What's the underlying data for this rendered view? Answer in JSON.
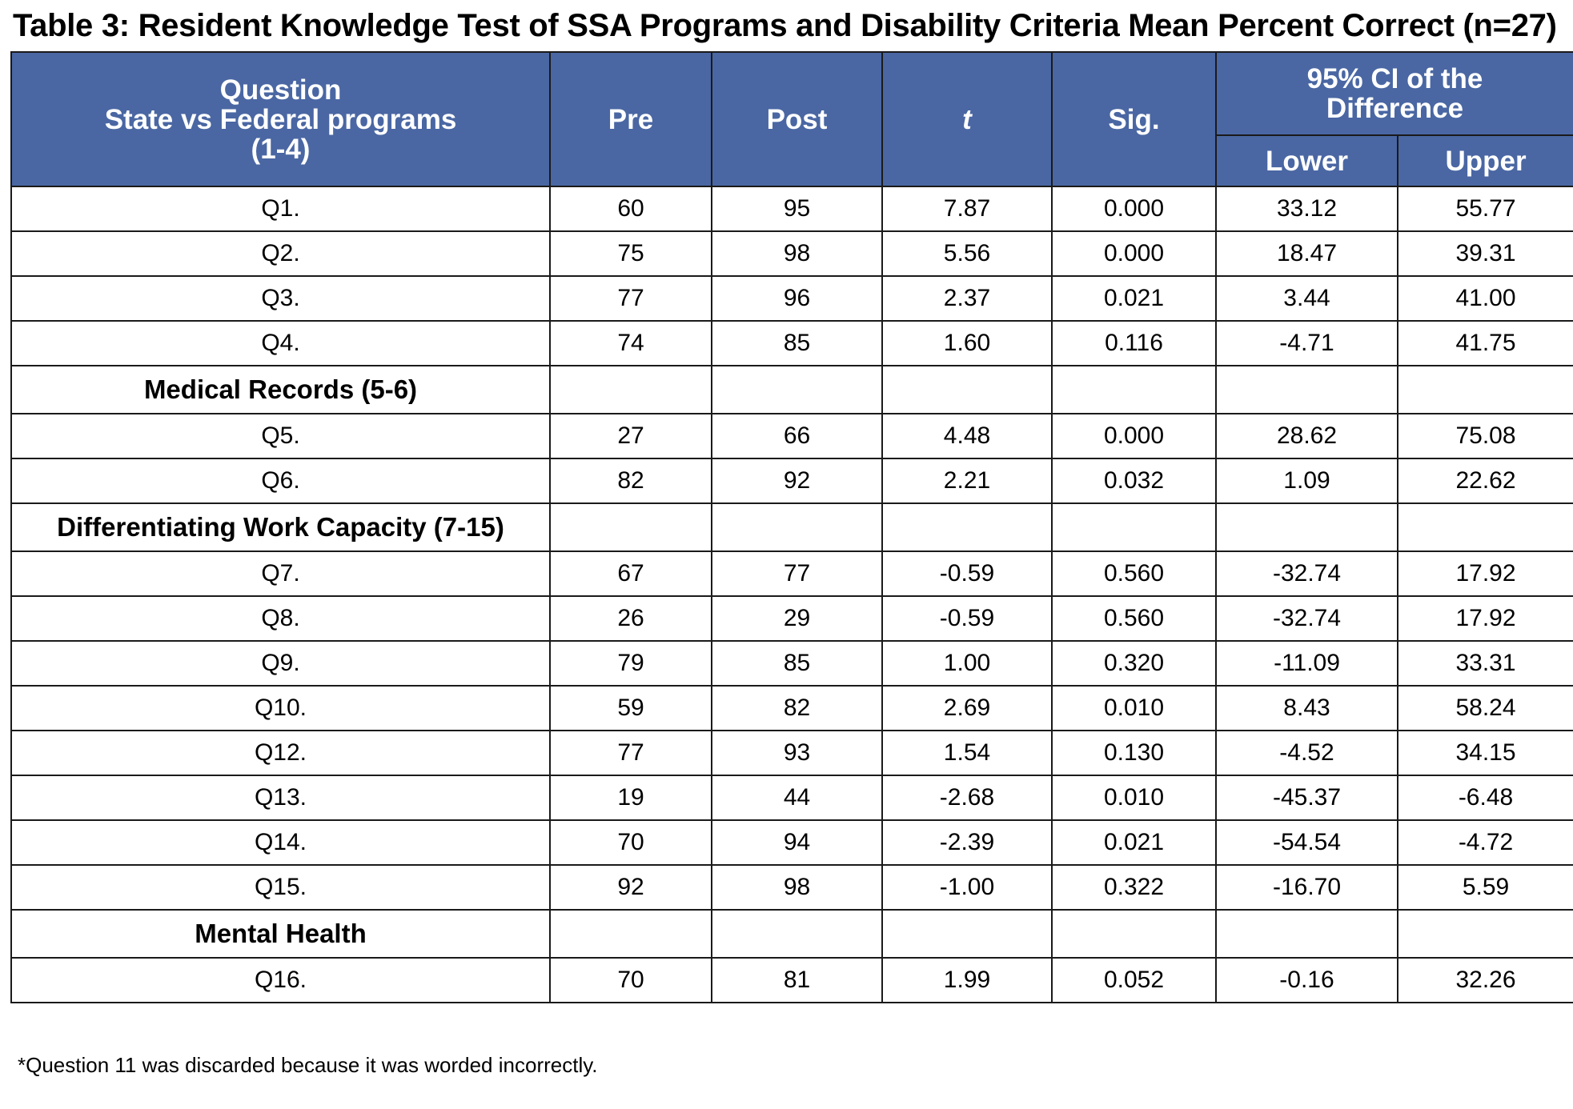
{
  "title": "Table 3: Resident Knowledge Test of SSA Programs and Disability Criteria Mean Percent Correct (n=27)",
  "header": {
    "question_line1": "Question",
    "question_line2": "State vs Federal programs",
    "question_line3": "(1-4)",
    "pre": "Pre",
    "post": "Post",
    "t": "t",
    "sig": "Sig.",
    "ci_line1": "95% CI of the",
    "ci_line2": "Difference",
    "lower": "Lower",
    "upper": "Upper"
  },
  "rows": [
    {
      "q": "Q1.",
      "pre": "60",
      "post": "95",
      "t": "7.87",
      "sig": "0.000",
      "lower": "33.12",
      "upper": "55.77"
    },
    {
      "q": "Q2.",
      "pre": "75",
      "post": "98",
      "t": "5.56",
      "sig": "0.000",
      "lower": "18.47",
      "upper": "39.31"
    },
    {
      "q": "Q3.",
      "pre": "77",
      "post": "96",
      "t": "2.37",
      "sig": "0.021",
      "lower": "3.44",
      "upper": "41.00"
    },
    {
      "q": "Q4.",
      "pre": "74",
      "post": "85",
      "t": "1.60",
      "sig": "0.116",
      "lower": "-4.71",
      "upper": "41.75"
    },
    {
      "section": "Medical Records (5-6)"
    },
    {
      "q": "Q5.",
      "pre": "27",
      "post": "66",
      "t": "4.48",
      "sig": "0.000",
      "lower": "28.62",
      "upper": "75.08"
    },
    {
      "q": "Q6.",
      "pre": "82",
      "post": "92",
      "t": "2.21",
      "sig": "0.032",
      "lower": "1.09",
      "upper": "22.62"
    },
    {
      "section": "Differentiating Work Capacity (7-15)"
    },
    {
      "q": "Q7.",
      "pre": "67",
      "post": "77",
      "t": "-0.59",
      "sig": "0.560",
      "lower": "-32.74",
      "upper": "17.92"
    },
    {
      "q": "Q8.",
      "pre": "26",
      "post": "29",
      "t": "-0.59",
      "sig": "0.560",
      "lower": "-32.74",
      "upper": "17.92"
    },
    {
      "q": "Q9.",
      "pre": "79",
      "post": "85",
      "t": "1.00",
      "sig": "0.320",
      "lower": "-11.09",
      "upper": "33.31"
    },
    {
      "q": "Q10.",
      "pre": "59",
      "post": "82",
      "t": "2.69",
      "sig": "0.010",
      "lower": "8.43",
      "upper": "58.24"
    },
    {
      "q": "Q12.",
      "pre": "77",
      "post": "93",
      "t": "1.54",
      "sig": "0.130",
      "lower": "-4.52",
      "upper": "34.15"
    },
    {
      "q": "Q13.",
      "pre": "19",
      "post": "44",
      "t": "-2.68",
      "sig": "0.010",
      "lower": "-45.37",
      "upper": "-6.48"
    },
    {
      "q": "Q14.",
      "pre": "70",
      "post": "94",
      "t": "-2.39",
      "sig": "0.021",
      "lower": "-54.54",
      "upper": "-4.72"
    },
    {
      "q": "Q15.",
      "pre": "92",
      "post": "98",
      "t": "-1.00",
      "sig": "0.322",
      "lower": "-16.70",
      "upper": "5.59"
    },
    {
      "section": "Mental Health"
    },
    {
      "q": "Q16.",
      "pre": "70",
      "post": "81",
      "t": "1.99",
      "sig": "0.052",
      "lower": "-0.16",
      "upper": "32.26"
    }
  ],
  "footnote": "*Question 11 was discarded because it was worded incorrectly.",
  "colors": {
    "header_bg": "#4a67a3",
    "header_text": "#ffffff",
    "border": "#1a1a1a"
  }
}
